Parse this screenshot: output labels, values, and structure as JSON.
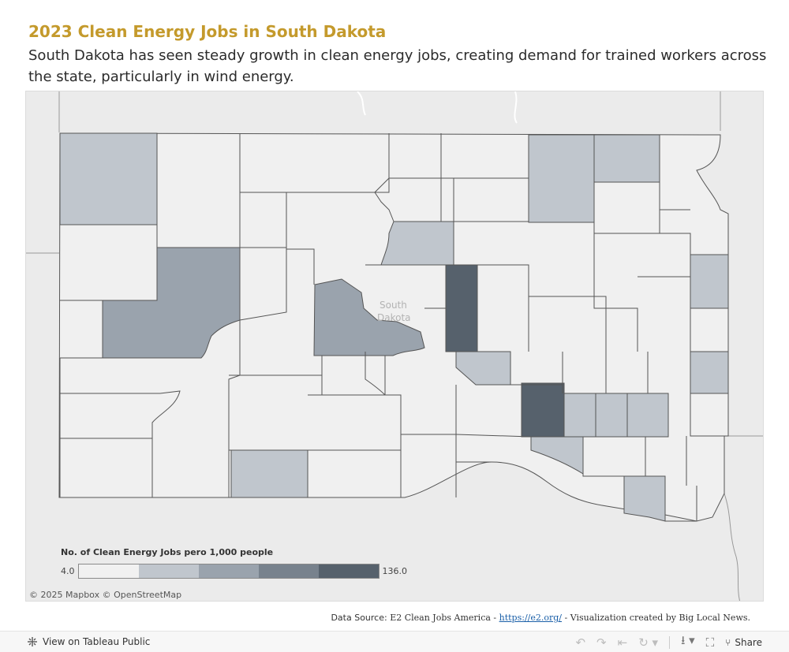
{
  "header": {
    "title": "2023 Clean Energy Jobs in South Dakota",
    "subtitle": "South Dakota has seen steady growth in clean energy jobs, creating demand for trained workers across the state, particularly in wind energy."
  },
  "map": {
    "state_label_line1": "South",
    "state_label_line2": "Dakota",
    "attribution": "© 2025 Mapbox  © OpenStreetMap",
    "colors": {
      "background": "#ebebeb",
      "county_base": "#f0f0f0",
      "border": "#555555"
    }
  },
  "legend": {
    "title": "No. of Clean Energy Jobs pero 1,000 people",
    "min": "4.0",
    "max": "136.0",
    "swatches": [
      "#f1f1f1",
      "#c0c6cd",
      "#9aa3ad",
      "#78828d",
      "#56616c"
    ]
  },
  "source": {
    "label": "Data Source:",
    "text1": "E2 Clean Jobs America - ",
    "link": "https://e2.org/",
    "text2": " - Visualization created by Big Local News."
  },
  "footer": {
    "view_label": "View on Tableau Public",
    "share_label": "Share",
    "icons": [
      "undo-icon",
      "redo-icon",
      "revert-icon",
      "refresh-icon",
      "download-icon",
      "fullscreen-icon",
      "share-icon"
    ]
  }
}
